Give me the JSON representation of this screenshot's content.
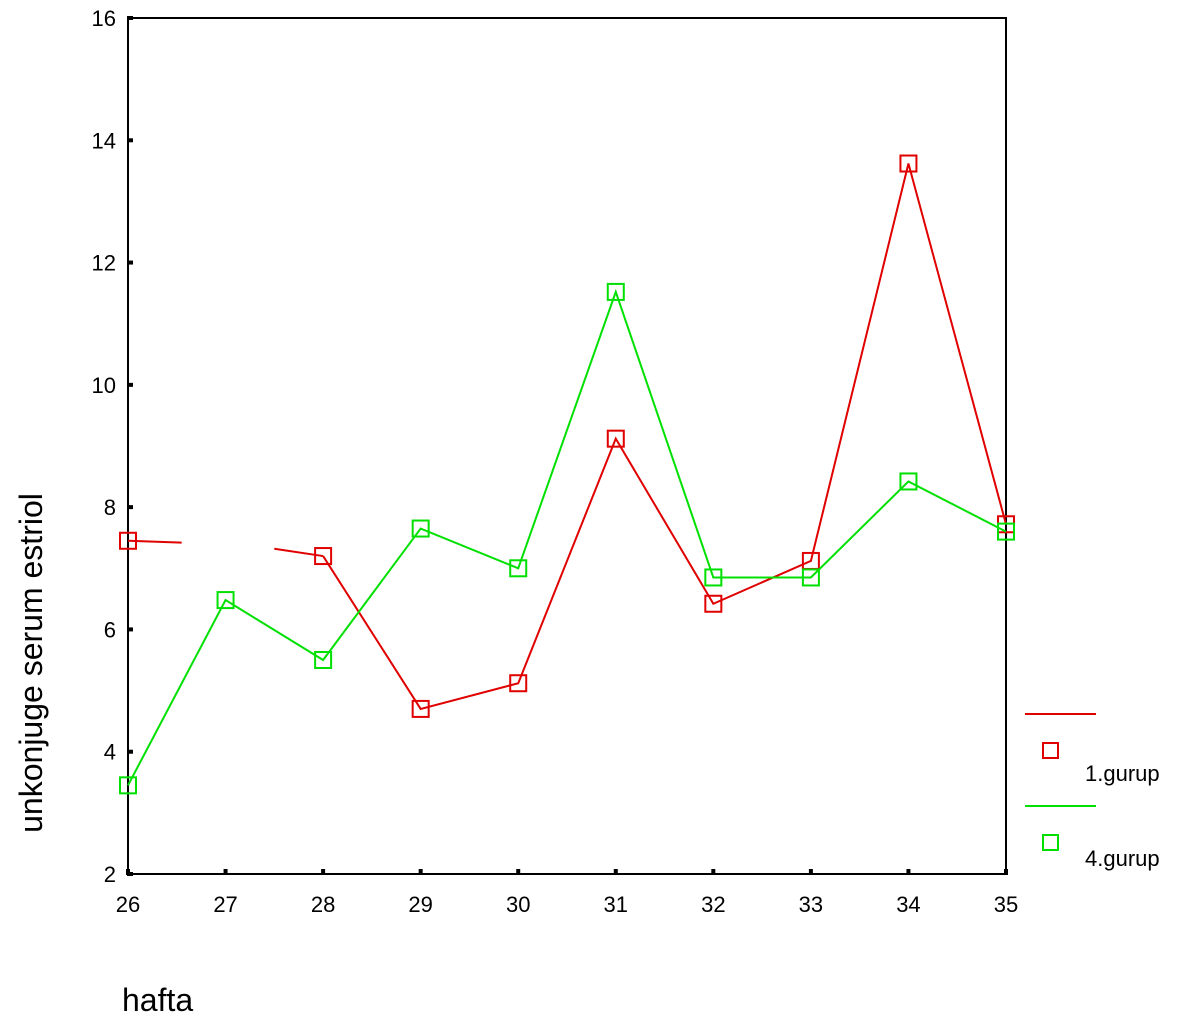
{
  "chart_data": {
    "type": "line",
    "title": "",
    "xlabel": "hafta",
    "ylabel": "unkonjuge serum estriol",
    "x": [
      26,
      27,
      28,
      29,
      30,
      31,
      32,
      33,
      34,
      35
    ],
    "xlim": [
      26,
      35
    ],
    "ylim": [
      2,
      16
    ],
    "yticks": [
      2,
      4,
      6,
      8,
      10,
      12,
      14,
      16
    ],
    "grid": false,
    "legend_position": "right",
    "series": [
      {
        "name": "1.gurup",
        "color": "#e00000",
        "marker": "square",
        "values": [
          7.45,
          null,
          7.2,
          4.7,
          5.12,
          9.12,
          6.42,
          7.12,
          13.62,
          7.72
        ],
        "stubs": [
          [
            26,
            26.55,
            7.45,
            7.42
          ],
          [
            27.5,
            28,
            7.32,
            7.2
          ]
        ]
      },
      {
        "name": "4.gurup",
        "color": "#00e000",
        "marker": "square",
        "values": [
          3.45,
          6.48,
          5.5,
          7.65,
          7.0,
          11.52,
          6.85,
          6.85,
          8.42,
          7.6
        ]
      }
    ]
  }
}
